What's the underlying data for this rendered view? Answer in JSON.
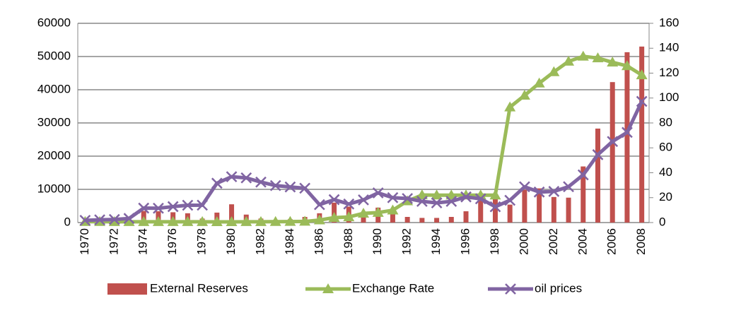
{
  "chart_data": {
    "type": "bar-line",
    "categories": [
      "1970",
      null,
      "1972",
      null,
      "1974",
      null,
      "1976",
      null,
      "1978",
      null,
      "1980",
      null,
      "1982",
      null,
      "1984",
      null,
      "1986",
      null,
      "1988",
      null,
      "1990",
      null,
      "1992",
      null,
      "1994",
      null,
      "1996",
      null,
      "1998",
      null,
      "2000",
      null,
      "2002",
      null,
      "2004",
      null,
      "2006",
      null,
      "2008"
    ],
    "series": [
      {
        "name": "External Reserves",
        "type": "bar",
        "color": "#c0504d",
        "axis": "y",
        "values": [
          200,
          400,
          350,
          600,
          3500,
          3400,
          3100,
          2800,
          1200,
          3000,
          5500,
          2400,
          1200,
          800,
          1000,
          1700,
          2800,
          6000,
          4800,
          3000,
          4500,
          3500,
          1700,
          1400,
          1400,
          1700,
          3400,
          7200,
          7100,
          5400,
          9900,
          10300,
          7700,
          7500,
          16900,
          28300,
          42300,
          51300,
          53000
        ]
      },
      {
        "name": "Exchange Rate",
        "type": "line",
        "marker": "triangle",
        "color": "#9bbb59",
        "axis": "y2",
        "values": [
          0.71,
          0.71,
          0.66,
          0.66,
          0.63,
          0.62,
          0.63,
          0.65,
          0.61,
          0.6,
          0.55,
          0.61,
          0.67,
          0.72,
          0.77,
          0.89,
          2.0,
          4.0,
          4.5,
          7.4,
          8.0,
          9.9,
          17.3,
          22.1,
          22.0,
          22.0,
          22.0,
          22.0,
          22.0,
          92.7,
          102.1,
          111.9,
          121.0,
          129.4,
          133.5,
          132.1,
          128.7,
          125.8,
          118.5
        ]
      },
      {
        "name": "oil prices",
        "type": "line",
        "marker": "x",
        "color": "#8064a2",
        "axis": "y2",
        "values": [
          1.8,
          2.2,
          2.5,
          3.3,
          11.6,
          11.5,
          12.8,
          13.9,
          14.0,
          31.6,
          36.8,
          35.9,
          32.5,
          29.7,
          28.6,
          27.6,
          14.4,
          18.4,
          14.9,
          18.2,
          23.8,
          20.0,
          19.3,
          17.0,
          15.8,
          17.0,
          20.6,
          19.1,
          12.7,
          17.9,
          28.7,
          24.5,
          25.0,
          28.8,
          38.3,
          54.5,
          65.1,
          72.4,
          97.3
        ]
      }
    ],
    "ylim": [
      0,
      60000
    ],
    "yticks": [
      0,
      10000,
      20000,
      30000,
      40000,
      50000,
      60000
    ],
    "y2lim": [
      0,
      160
    ],
    "y2ticks": [
      0,
      20,
      40,
      60,
      80,
      100,
      120,
      140,
      160
    ],
    "grid": true,
    "legend": "bottom"
  }
}
